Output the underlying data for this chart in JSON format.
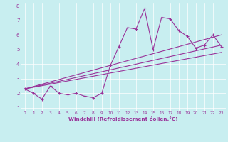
{
  "xlabel": "Windchill (Refroidissement éolien,°C)",
  "bg_color": "#c8eef0",
  "line_color": "#993399",
  "xlim": [
    -0.5,
    23.5
  ],
  "ylim": [
    0.8,
    8.2
  ],
  "xticks": [
    0,
    1,
    2,
    3,
    4,
    5,
    6,
    7,
    8,
    9,
    10,
    11,
    12,
    13,
    14,
    15,
    16,
    17,
    18,
    19,
    20,
    21,
    22,
    23
  ],
  "yticks": [
    1,
    2,
    3,
    4,
    5,
    6,
    7,
    8
  ],
  "series1_x": [
    0,
    1,
    2,
    3,
    4,
    5,
    6,
    7,
    8,
    9,
    10,
    11,
    12,
    13,
    14,
    15,
    16,
    17,
    18,
    19,
    20,
    21,
    22,
    23
  ],
  "series1_y": [
    2.3,
    2.0,
    1.6,
    2.5,
    2.0,
    1.9,
    2.0,
    1.8,
    1.7,
    2.0,
    3.9,
    5.2,
    6.5,
    6.4,
    7.8,
    5.0,
    7.2,
    7.1,
    6.3,
    5.9,
    5.1,
    5.3,
    6.0,
    5.2
  ],
  "series2_x": [
    0,
    23
  ],
  "series2_y": [
    2.3,
    5.3
  ],
  "series3_x": [
    0,
    23
  ],
  "series3_y": [
    2.3,
    6.0
  ],
  "series4_x": [
    0,
    23
  ],
  "series4_y": [
    2.3,
    4.8
  ]
}
